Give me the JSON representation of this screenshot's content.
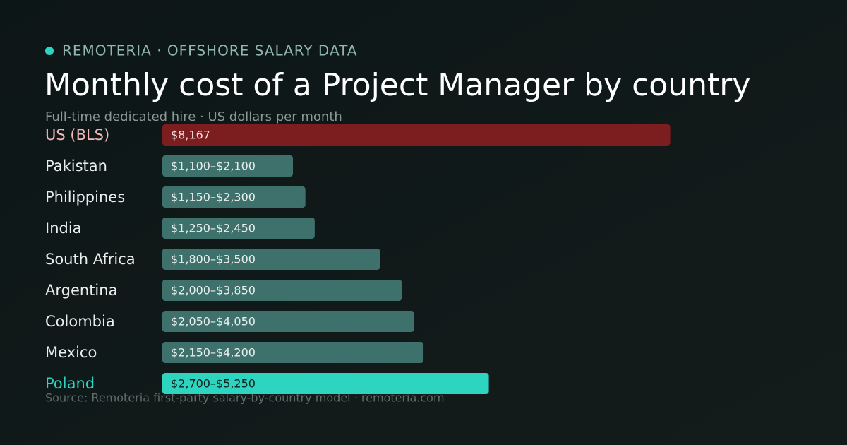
{
  "chart_data": {
    "type": "bar",
    "orientation": "horizontal",
    "kicker": "REMOTERIA · OFFSHORE SALARY DATA",
    "title": "Monthly cost of a Project Manager by country",
    "subtitle": "Full-time dedicated hire · US dollars per month",
    "source": "Source: Remoteria first-party salary-by-country model · remoteria.com",
    "categories": [
      "US (BLS)",
      "Pakistan",
      "Philippines",
      "India",
      "South Africa",
      "Argentina",
      "Colombia",
      "Mexico",
      "Poland"
    ],
    "values": [
      8167,
      2100,
      2300,
      2450,
      3500,
      3850,
      4050,
      4200,
      5250
    ],
    "value_labels": [
      "$8,167",
      "$1,100–$2,100",
      "$1,150–$2,300",
      "$1,250–$2,450",
      "$1,800–$3,500",
      "$2,000–$3,850",
      "$2,050–$4,050",
      "$2,150–$4,200",
      "$2,700–$5,250"
    ],
    "colors": [
      "#7c1d1f",
      "#3f716c",
      "#3f716c",
      "#3f716c",
      "#3f716c",
      "#3f716c",
      "#3f716c",
      "#3f716c",
      "#2dd4bf"
    ],
    "label_colors": [
      "#f4b8b8",
      "#e8eeed",
      "#e8eeed",
      "#e8eeed",
      "#e8eeed",
      "#e8eeed",
      "#e8eeed",
      "#e8eeed",
      "#2dd4bf"
    ],
    "value_label_colors": [
      "#f2dede",
      "#e8eeed",
      "#e8eeed",
      "#e8eeed",
      "#e8eeed",
      "#e8eeed",
      "#e8eeed",
      "#e8eeed",
      "#0f1f1e"
    ],
    "xlim": [
      0,
      9000
    ]
  }
}
